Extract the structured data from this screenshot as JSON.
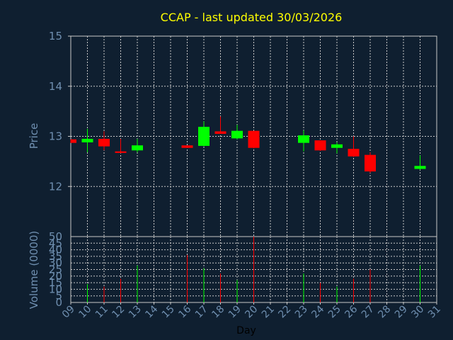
{
  "chart_data": {
    "type": "candlestick",
    "title": "CCAP - last updated 30/03/2026",
    "price_panel": {
      "ylabel": "Price",
      "ylim": [
        11,
        15
      ],
      "yticks": [
        12,
        13,
        14,
        15
      ],
      "candles": [
        {
          "day": 9,
          "open": 12.94,
          "high": 12.94,
          "low": 12.87,
          "close": 12.87
        },
        {
          "day": 10,
          "open": 12.88,
          "high": 13.15,
          "low": 12.68,
          "close": 12.95
        },
        {
          "day": 11,
          "open": 12.95,
          "high": 13.1,
          "low": 12.72,
          "close": 12.8
        },
        {
          "day": 12,
          "open": 12.7,
          "high": 12.95,
          "low": 12.66,
          "close": 12.67
        },
        {
          "day": 13,
          "open": 12.72,
          "high": 12.95,
          "low": 12.68,
          "close": 12.82
        },
        {
          "day": 16,
          "open": 12.82,
          "high": 12.82,
          "low": 12.77,
          "close": 12.77
        },
        {
          "day": 17,
          "open": 12.81,
          "high": 13.3,
          "low": 12.8,
          "close": 13.19
        },
        {
          "day": 18,
          "open": 13.1,
          "high": 13.4,
          "low": 13.05,
          "close": 13.05
        },
        {
          "day": 19,
          "open": 12.96,
          "high": 13.23,
          "low": 12.94,
          "close": 13.11
        },
        {
          "day": 20,
          "open": 13.11,
          "high": 13.11,
          "low": 12.76,
          "close": 12.77
        },
        {
          "day": 23,
          "open": 12.87,
          "high": 13.12,
          "low": 12.7,
          "close": 13.02
        },
        {
          "day": 24,
          "open": 12.92,
          "high": 12.92,
          "low": 12.71,
          "close": 12.72
        },
        {
          "day": 25,
          "open": 12.77,
          "high": 12.88,
          "low": 12.66,
          "close": 12.84
        },
        {
          "day": 26,
          "open": 12.75,
          "high": 13.0,
          "low": 12.59,
          "close": 12.6
        },
        {
          "day": 27,
          "open": 12.63,
          "high": 12.68,
          "low": 12.27,
          "close": 12.3
        },
        {
          "day": 30,
          "open": 12.35,
          "high": 12.62,
          "low": 12.33,
          "close": 12.41
        }
      ]
    },
    "volume_panel": {
      "ylabel": "Volume (0000)",
      "ylim": [
        0,
        50
      ],
      "yticks": [
        0,
        5,
        10,
        15,
        20,
        25,
        30,
        35,
        40,
        45,
        50
      ],
      "bars": [
        {
          "day": 10,
          "value": 14,
          "direction": "up"
        },
        {
          "day": 11,
          "value": 12,
          "direction": "down"
        },
        {
          "day": 12,
          "value": 18,
          "direction": "down"
        },
        {
          "day": 13,
          "value": 28,
          "direction": "up"
        },
        {
          "day": 16,
          "value": 36,
          "direction": "down"
        },
        {
          "day": 17,
          "value": 26,
          "direction": "up"
        },
        {
          "day": 18,
          "value": 22,
          "direction": "down"
        },
        {
          "day": 19,
          "value": 17,
          "direction": "up"
        },
        {
          "day": 20,
          "value": 50,
          "direction": "down"
        },
        {
          "day": 23,
          "value": 22,
          "direction": "up"
        },
        {
          "day": 24,
          "value": 15,
          "direction": "down"
        },
        {
          "day": 25,
          "value": 12,
          "direction": "up"
        },
        {
          "day": 26,
          "value": 18,
          "direction": "down"
        },
        {
          "day": 27,
          "value": 25,
          "direction": "down"
        },
        {
          "day": 30,
          "value": 28,
          "direction": "up"
        }
      ]
    },
    "xlabel": "Day",
    "xlim": [
      9,
      31
    ],
    "xticks": [
      "09",
      "10",
      "11",
      "12",
      "13",
      "14",
      "15",
      "16",
      "17",
      "18",
      "19",
      "20",
      "21",
      "22",
      "23",
      "24",
      "25",
      "26",
      "27",
      "28",
      "29",
      "30",
      "31"
    ],
    "grid": true,
    "colors": {
      "background": "#0f1f30",
      "up": "#00ff00",
      "down": "#ff0000",
      "grid": "#c8c8c8",
      "title": "#ffff00",
      "axis_text": "#6f8fb0",
      "xlabel": "#000000"
    }
  }
}
